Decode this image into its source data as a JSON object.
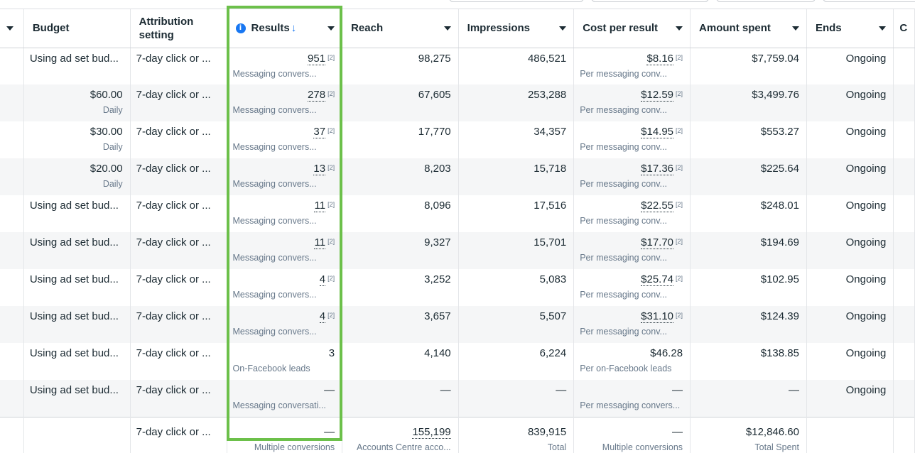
{
  "columns": {
    "first_caret": "",
    "budget": "Budget",
    "attribution": "Attribution setting",
    "results": "Results",
    "reach": "Reach",
    "impressions": "Impressions",
    "cost_per_result": "Cost per result",
    "amount_spent": "Amount spent",
    "ends": "Ends",
    "partial": "C"
  },
  "footnote": "[2]",
  "rows": [
    {
      "budget": "Using ad set bud...",
      "budget_sub": "",
      "attribution": "7-day click or ...",
      "results": "951",
      "results_sub": "Messaging convers...",
      "reach": "98,275",
      "impressions": "486,521",
      "cpr": "$8.16",
      "cpr_sub": "Per messaging conv...",
      "spent": "$7,759.04",
      "ends": "Ongoing"
    },
    {
      "budget": "$60.00",
      "budget_sub": "Daily",
      "attribution": "7-day click or ...",
      "results": "278",
      "results_sub": "Messaging convers...",
      "reach": "67,605",
      "impressions": "253,288",
      "cpr": "$12.59",
      "cpr_sub": "Per messaging conv...",
      "spent": "$3,499.76",
      "ends": "Ongoing"
    },
    {
      "budget": "$30.00",
      "budget_sub": "Daily",
      "attribution": "7-day click or ...",
      "results": "37",
      "results_sub": "Messaging convers...",
      "reach": "17,770",
      "impressions": "34,357",
      "cpr": "$14.95",
      "cpr_sub": "Per messaging conv...",
      "spent": "$553.27",
      "ends": "Ongoing"
    },
    {
      "budget": "$20.00",
      "budget_sub": "Daily",
      "attribution": "7-day click or ...",
      "results": "13",
      "results_sub": "Messaging convers...",
      "reach": "8,203",
      "impressions": "15,718",
      "cpr": "$17.36",
      "cpr_sub": "Per messaging conv...",
      "spent": "$225.64",
      "ends": "Ongoing"
    },
    {
      "budget": "Using ad set bud...",
      "budget_sub": "",
      "attribution": "7-day click or ...",
      "results": "11",
      "results_sub": "Messaging convers...",
      "reach": "8,096",
      "impressions": "17,516",
      "cpr": "$22.55",
      "cpr_sub": "Per messaging conv...",
      "spent": "$248.01",
      "ends": "Ongoing"
    },
    {
      "budget": "Using ad set bud...",
      "budget_sub": "",
      "attribution": "7-day click or ...",
      "results": "11",
      "results_sub": "Messaging convers...",
      "reach": "9,327",
      "impressions": "15,701",
      "cpr": "$17.70",
      "cpr_sub": "Per messaging conv...",
      "spent": "$194.69",
      "ends": "Ongoing"
    },
    {
      "budget": "Using ad set bud...",
      "budget_sub": "",
      "attribution": "7-day click or ...",
      "results": "4",
      "results_sub": "Messaging convers...",
      "reach": "3,252",
      "impressions": "5,083",
      "cpr": "$25.74",
      "cpr_sub": "Per messaging conv...",
      "spent": "$102.95",
      "ends": "Ongoing"
    },
    {
      "budget": "Using ad set bud...",
      "budget_sub": "",
      "attribution": "7-day click or ...",
      "results": "4",
      "results_sub": "Messaging convers...",
      "reach": "3,657",
      "impressions": "5,507",
      "cpr": "$31.10",
      "cpr_sub": "Per messaging conv...",
      "spent": "$124.39",
      "ends": "Ongoing"
    },
    {
      "budget": "Using ad set bud...",
      "budget_sub": "",
      "attribution": "7-day click or ...",
      "results": "3",
      "results_sub": "On-Facebook leads",
      "reach": "4,140",
      "impressions": "6,224",
      "cpr": "$46.28",
      "cpr_sub": "Per on-Facebook leads",
      "spent": "$138.85",
      "ends": "Ongoing"
    },
    {
      "budget": "Using ad set bud...",
      "budget_sub": "",
      "attribution": "7-day click or ...",
      "results": "—",
      "results_sub": "Messaging conversati...",
      "reach": "—",
      "impressions": "—",
      "cpr": "—",
      "cpr_sub": "Per messaging convers...",
      "spent": "—",
      "ends": "Ongoing"
    }
  ],
  "totals": {
    "attribution": "7-day click or ...",
    "results": "—",
    "results_sub": "Multiple conversions",
    "reach": "155,199",
    "reach_sub": "Accounts Centre acco...",
    "impressions": "839,915",
    "impressions_sub": "Total",
    "cpr": "—",
    "cpr_sub": "Multiple conversions",
    "spent": "$12,846.60",
    "spent_sub": "Total Spent"
  },
  "colors": {
    "highlight": "#6cc04a",
    "accent": "#1877f2"
  }
}
